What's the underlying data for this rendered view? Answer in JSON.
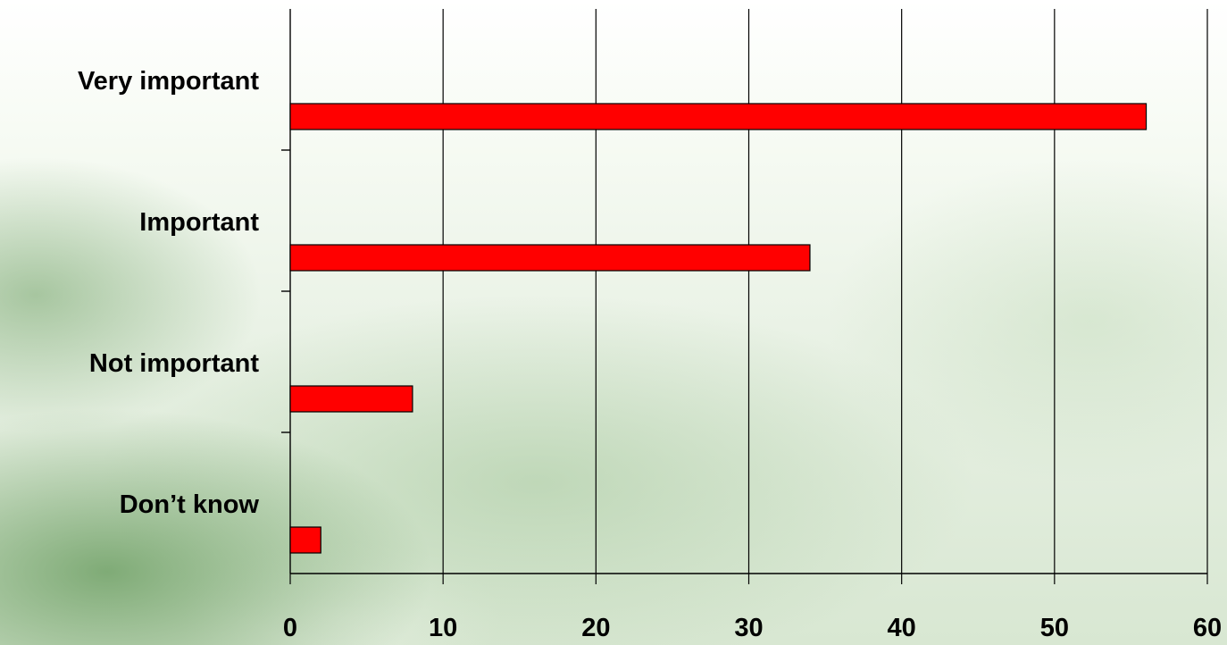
{
  "chart_data": {
    "type": "bar",
    "orientation": "horizontal",
    "categories": [
      "Very important",
      "Important",
      "Not important",
      "Don’t know"
    ],
    "values": [
      56,
      34,
      8,
      2
    ],
    "xlim": [
      0,
      60
    ],
    "xticks": [
      "0",
      "10",
      "20",
      "30",
      "40",
      "50",
      "60"
    ],
    "grid": true,
    "bar_color": "#ff0000",
    "bar_edge_color": "#000000"
  }
}
